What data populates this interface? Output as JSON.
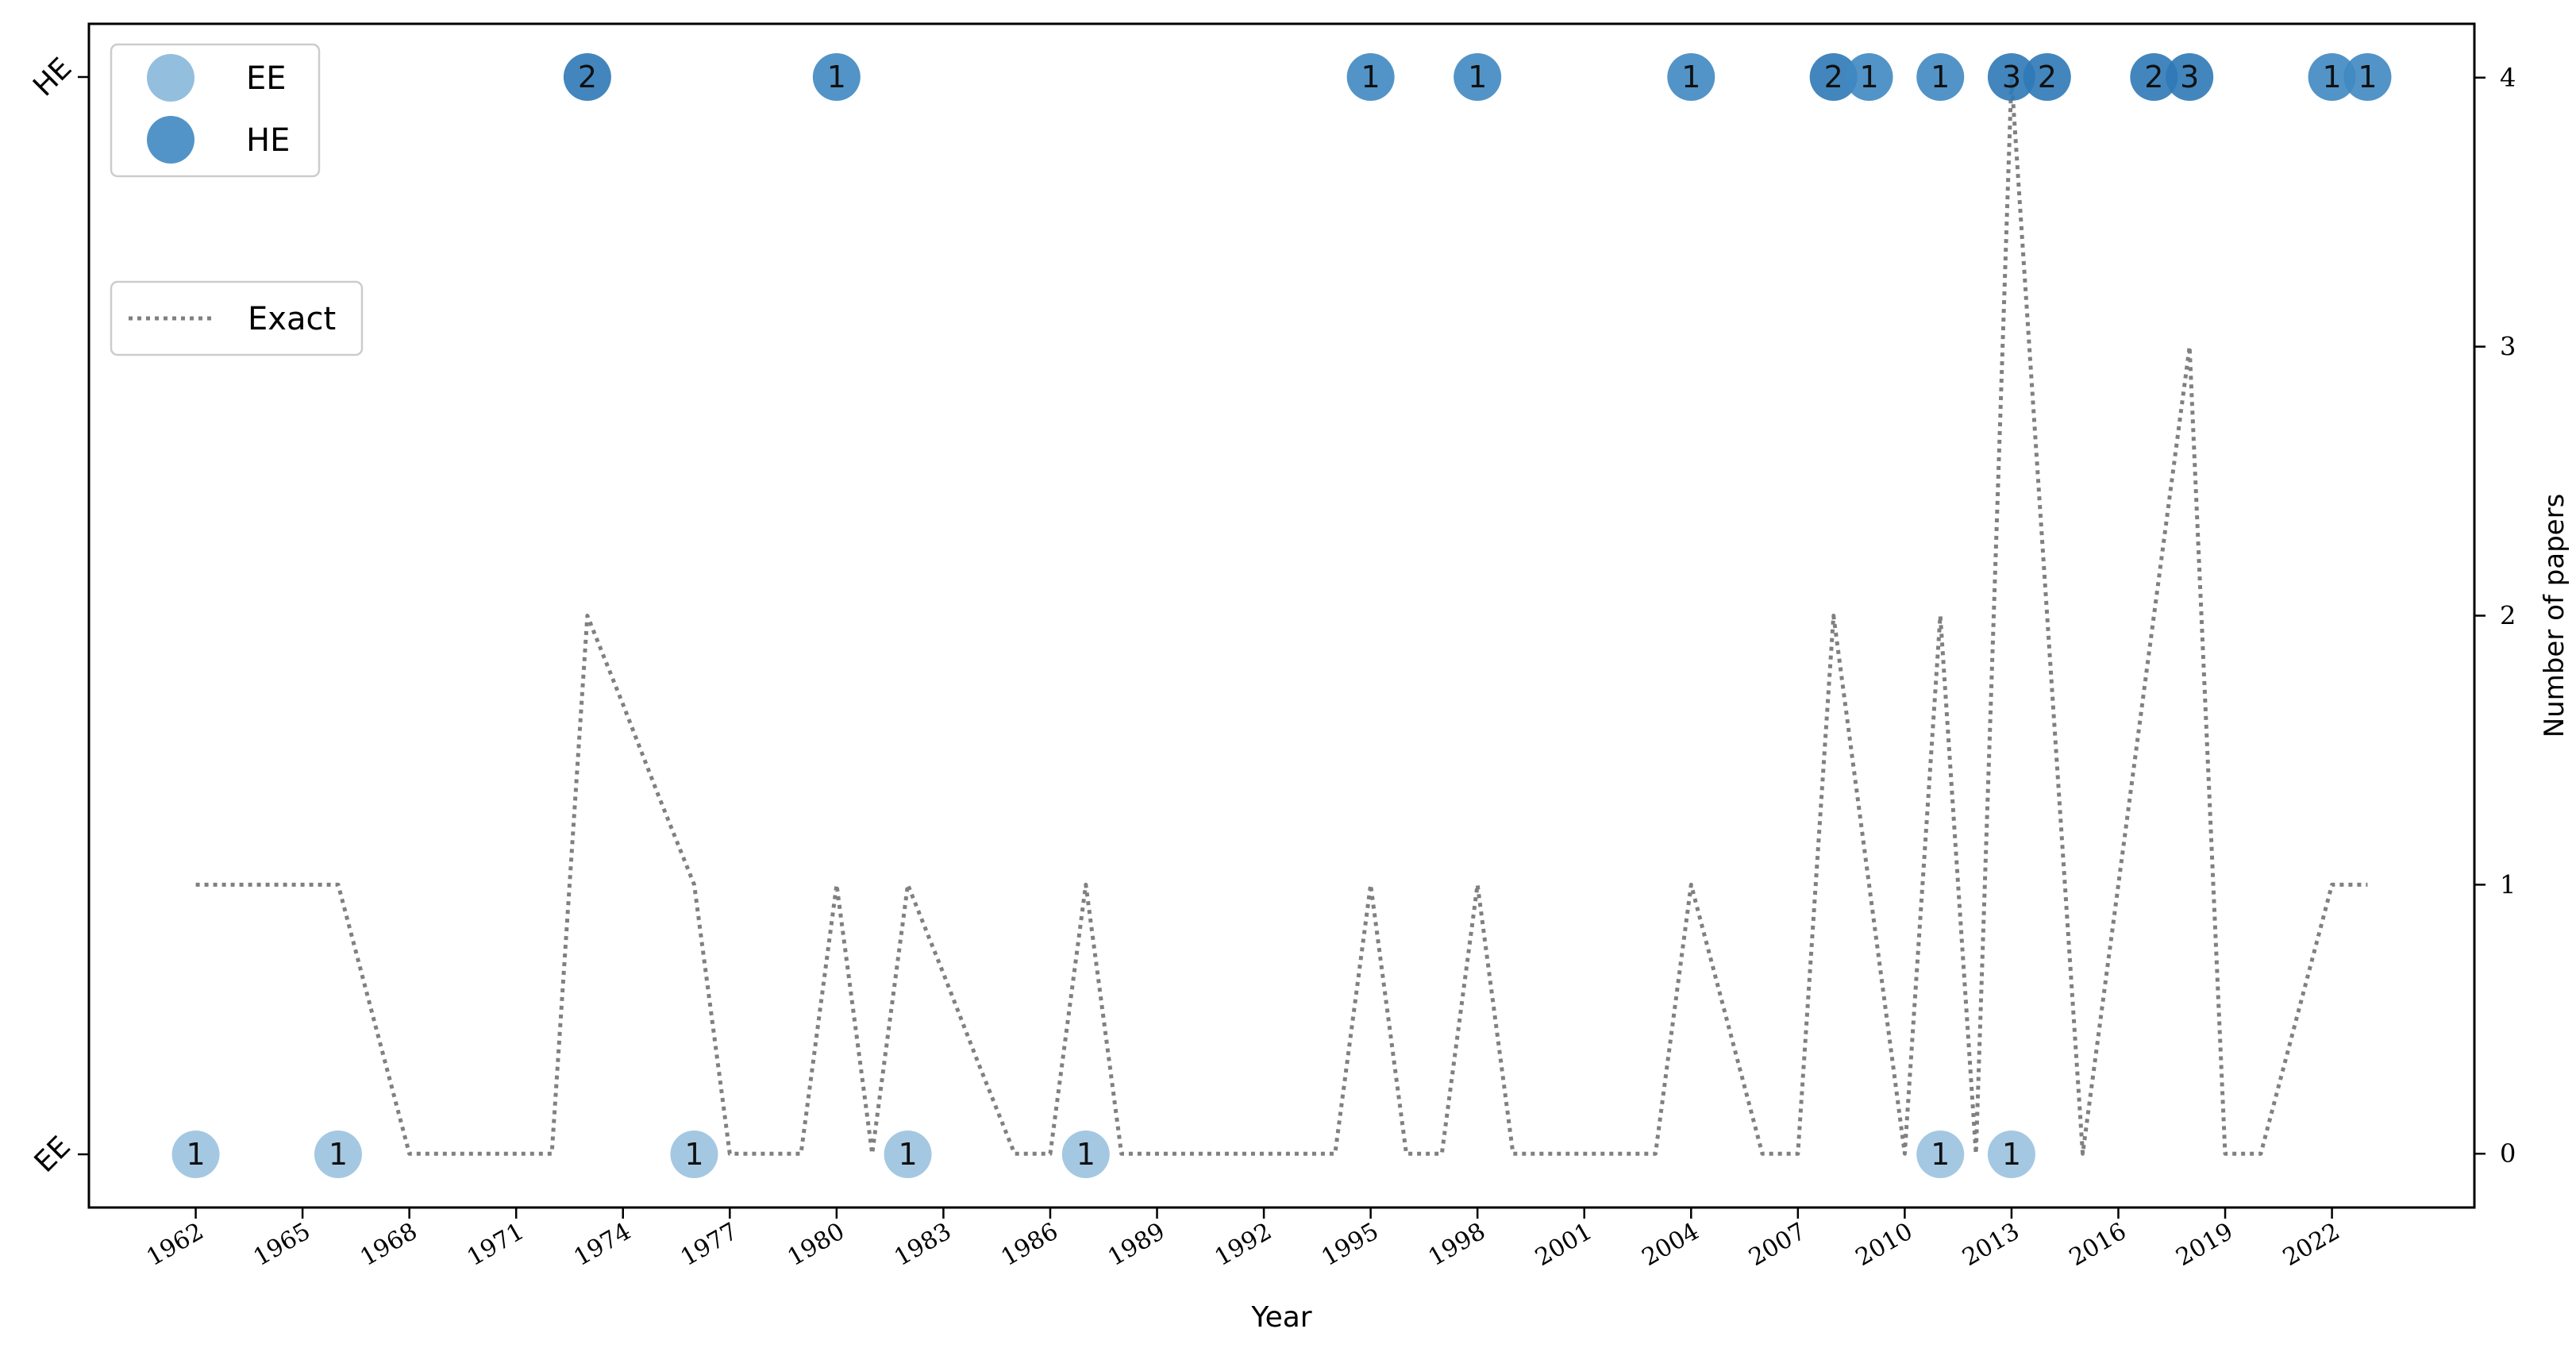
{
  "chart_data": {
    "type": "scatter",
    "xlabel": "Year",
    "ylabel_right": "Number of papers",
    "xlim": [
      1959,
      2026
    ],
    "x_ticks": [
      1962,
      1965,
      1968,
      1971,
      1974,
      1977,
      1980,
      1983,
      1986,
      1989,
      1992,
      1995,
      1998,
      2001,
      2004,
      2007,
      2010,
      2013,
      2016,
      2019,
      2022
    ],
    "left_categories": [
      "EE",
      "HE"
    ],
    "right_ylim": [
      -0.2,
      4.2
    ],
    "right_ticks": [
      0,
      1,
      2,
      3,
      4
    ],
    "legend_position": "upper-left",
    "colors": {
      "EE": "#94bedd",
      "HE": "#3f88c1",
      "HE_dark": "#2f79b6",
      "line": "#808080"
    },
    "points": {
      "EE": [
        {
          "year": 1962,
          "count": 1
        },
        {
          "year": 1966,
          "count": 1
        },
        {
          "year": 1976,
          "count": 1
        },
        {
          "year": 1982,
          "count": 1
        },
        {
          "year": 1987,
          "count": 1
        },
        {
          "year": 2011,
          "count": 1
        },
        {
          "year": 2013,
          "count": 1
        }
      ],
      "HE": [
        {
          "year": 1973,
          "count": 2
        },
        {
          "year": 1980,
          "count": 1
        },
        {
          "year": 1995,
          "count": 1
        },
        {
          "year": 1998,
          "count": 1
        },
        {
          "year": 2004,
          "count": 1
        },
        {
          "year": 2008,
          "count": 2
        },
        {
          "year": 2009,
          "count": 1
        },
        {
          "year": 2011,
          "count": 1
        },
        {
          "year": 2013,
          "count": 3
        },
        {
          "year": 2014,
          "count": 2
        },
        {
          "year": 2017,
          "count": 2
        },
        {
          "year": 2018,
          "count": 3
        },
        {
          "year": 2022,
          "count": 1
        },
        {
          "year": 2023,
          "count": 1
        }
      ]
    },
    "exact_series": {
      "name": "Exact",
      "x": [
        1962,
        1963,
        1964,
        1965,
        1966,
        1967,
        1968,
        1969,
        1970,
        1971,
        1972,
        1973,
        1974,
        1975,
        1976,
        1977,
        1978,
        1979,
        1980,
        1981,
        1982,
        1983,
        1984,
        1985,
        1986,
        1987,
        1988,
        1989,
        1990,
        1991,
        1992,
        1993,
        1994,
        1995,
        1996,
        1997,
        1998,
        1999,
        2000,
        2001,
        2002,
        2003,
        2004,
        2005,
        2006,
        2007,
        2008,
        2009,
        2010,
        2011,
        2012,
        2013,
        2014,
        2015,
        2016,
        2017,
        2018,
        2019,
        2020,
        2021,
        2022,
        2023
      ],
      "y": [
        1,
        1,
        1,
        1,
        1,
        0.5,
        0,
        0,
        0,
        0,
        0,
        2,
        1.67,
        1.33,
        1,
        0,
        0,
        0,
        1,
        0,
        1,
        0.67,
        0.33,
        0,
        0,
        1,
        0,
        0,
        0,
        0,
        0,
        0,
        0,
        1,
        0,
        0,
        1,
        0,
        0,
        0,
        0,
        0,
        1,
        0.5,
        0,
        0,
        2,
        1,
        0,
        2,
        0,
        4,
        2,
        0,
        1,
        2,
        3,
        0,
        0,
        0.5,
        1,
        1
      ]
    },
    "legend": {
      "markers": [
        "EE",
        "HE"
      ],
      "line": "Exact"
    }
  }
}
